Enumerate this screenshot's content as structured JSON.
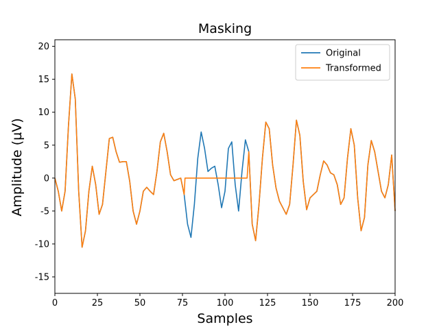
{
  "chart_data": {
    "type": "line",
    "title": "Masking",
    "xlabel": "Samples",
    "ylabel": "Amplitude (µV)",
    "xlim": [
      0,
      200
    ],
    "ylim": [
      -17.5,
      21
    ],
    "xticks": [
      0,
      25,
      50,
      75,
      100,
      125,
      150,
      175,
      200
    ],
    "yticks": [
      -15,
      -10,
      -5,
      0,
      5,
      10,
      15,
      20
    ],
    "grid": false,
    "legend_position": "top-right",
    "series": [
      {
        "name": "Original",
        "color": "#1f77b4",
        "x": [
          0,
          2,
          4,
          6,
          8,
          10,
          12,
          14,
          16,
          18,
          20,
          22,
          24,
          26,
          28,
          30,
          32,
          34,
          36,
          38,
          40,
          42,
          44,
          46,
          48,
          50,
          52,
          54,
          56,
          58,
          60,
          62,
          64,
          66,
          68,
          70,
          72,
          74,
          76,
          78,
          80,
          82,
          84,
          86,
          88,
          90,
          92,
          94,
          96,
          98,
          100,
          102,
          104,
          106,
          108,
          110,
          112,
          114,
          116,
          118,
          120,
          122,
          124,
          126,
          128,
          130,
          132,
          134,
          136,
          138,
          140,
          142,
          144,
          146,
          148,
          150,
          152,
          154,
          156,
          158,
          160,
          162,
          164,
          166,
          168,
          170,
          172,
          174,
          176,
          178,
          180,
          182,
          184,
          186,
          188,
          190,
          192,
          194,
          196,
          198,
          200
        ],
        "y": [
          0,
          -2,
          -5,
          -2,
          8,
          15.8,
          12,
          -2,
          -10.5,
          -8,
          -2,
          1.8,
          -1,
          -5.5,
          -4,
          1,
          6,
          6.2,
          4,
          2.4,
          2.5,
          2.5,
          -0.5,
          -5,
          -7,
          -5,
          -2,
          -1.4,
          -2,
          -2.5,
          1,
          5.5,
          6.8,
          4,
          0.5,
          -0.4,
          -0.2,
          0,
          -2.5,
          -7,
          -9,
          -4,
          3,
          7,
          4.5,
          1,
          1.5,
          1.8,
          -1,
          -4.5,
          -2,
          4.5,
          5.5,
          -1,
          -5,
          1,
          5.8,
          4,
          -7,
          -9.5,
          -4,
          3,
          8.5,
          7.5,
          2,
          -1.5,
          -3.5,
          -4.5,
          -5.5,
          -4,
          2,
          8.8,
          6.5,
          -0.5,
          -4.8,
          -3,
          -2.5,
          -2,
          0.5,
          2.6,
          2,
          0.8,
          0.5,
          -1,
          -4,
          -3,
          3,
          7.5,
          5,
          -3,
          -8,
          -6,
          2,
          5.7,
          4,
          1,
          -2,
          -3,
          -1,
          3.5,
          -5
        ]
      },
      {
        "name": "Transformed",
        "color": "#ff7f0e",
        "x": [
          0,
          2,
          4,
          6,
          8,
          10,
          12,
          14,
          16,
          18,
          20,
          22,
          24,
          26,
          28,
          30,
          32,
          34,
          36,
          38,
          40,
          42,
          44,
          46,
          48,
          50,
          52,
          54,
          56,
          58,
          60,
          62,
          64,
          66,
          68,
          70,
          72,
          74,
          76,
          76.5,
          78,
          80,
          82,
          84,
          86,
          88,
          90,
          92,
          94,
          96,
          98,
          100,
          102,
          104,
          106,
          108,
          110,
          112,
          113,
          114,
          116,
          118,
          120,
          122,
          124,
          126,
          128,
          130,
          132,
          134,
          136,
          138,
          140,
          142,
          144,
          146,
          148,
          150,
          152,
          154,
          156,
          158,
          160,
          162,
          164,
          166,
          168,
          170,
          172,
          174,
          176,
          178,
          180,
          182,
          184,
          186,
          188,
          190,
          192,
          194,
          196,
          198,
          200
        ],
        "y": [
          0,
          -2,
          -5,
          -2,
          8,
          15.8,
          12,
          -2,
          -10.5,
          -8,
          -2,
          1.8,
          -1,
          -5.5,
          -4,
          1,
          6,
          6.2,
          4,
          2.4,
          2.5,
          2.5,
          -0.5,
          -5,
          -7,
          -5,
          -2,
          -1.4,
          -2,
          -2.5,
          1,
          5.5,
          6.8,
          4,
          0.5,
          -0.4,
          -0.2,
          0,
          -2.5,
          0,
          0,
          0,
          0,
          0,
          0,
          0,
          0,
          0,
          0,
          0,
          0,
          0,
          0,
          0,
          0,
          0,
          0,
          0,
          0,
          4,
          -7,
          -9.5,
          -4,
          3,
          8.5,
          7.5,
          2,
          -1.5,
          -3.5,
          -4.5,
          -5.5,
          -4,
          2,
          8.8,
          6.5,
          -0.5,
          -4.8,
          -3,
          -2.5,
          -2,
          0.5,
          2.6,
          2,
          0.8,
          0.5,
          -1,
          -4,
          -3,
          3,
          7.5,
          5,
          -3,
          -8,
          -6,
          2,
          5.7,
          4,
          1,
          -2,
          -3,
          -1,
          3.5,
          -5
        ]
      }
    ]
  }
}
